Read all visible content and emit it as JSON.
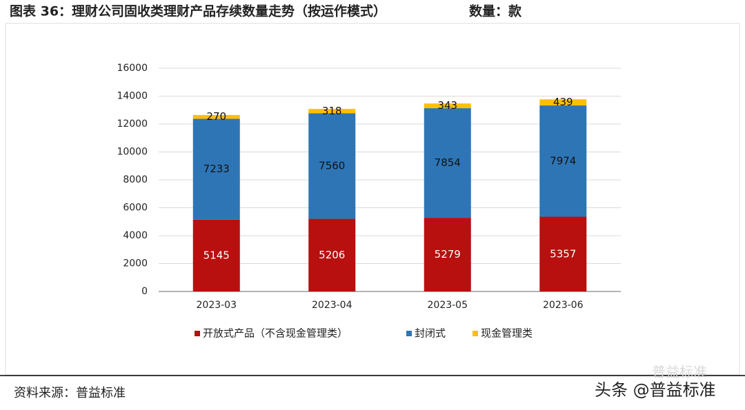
{
  "header": {
    "title": "图表 36：理财公司固收类理财产品存续数量走势（按运作模式）",
    "unit": "数量：款"
  },
  "chart_data": {
    "type": "stacked-bar",
    "categories": [
      "2023-03",
      "2023-04",
      "2023-05",
      "2023-06"
    ],
    "series": [
      {
        "name": "开放式产品（不含现金管理类）",
        "color": "#b80f0f",
        "label_color": "#ffffff",
        "values": [
          5145,
          5206,
          5279,
          5357
        ]
      },
      {
        "name": "封闭式",
        "color": "#2e75b6",
        "label_color": "#111111",
        "values": [
          7233,
          7560,
          7854,
          7974
        ]
      },
      {
        "name": "现金管理类",
        "color": "#ffc000",
        "label_color": "#111111",
        "values": [
          270,
          318,
          343,
          439
        ]
      }
    ],
    "ylim": [
      0,
      16000
    ],
    "yticks": [
      0,
      2000,
      4000,
      6000,
      8000,
      10000,
      12000,
      14000,
      16000
    ],
    "grid": true,
    "legend": "bottom"
  },
  "footer": {
    "source": "资料来源：普益标准",
    "watermark": "头条 @普益标准",
    "faint_watermark": "普益标准"
  }
}
